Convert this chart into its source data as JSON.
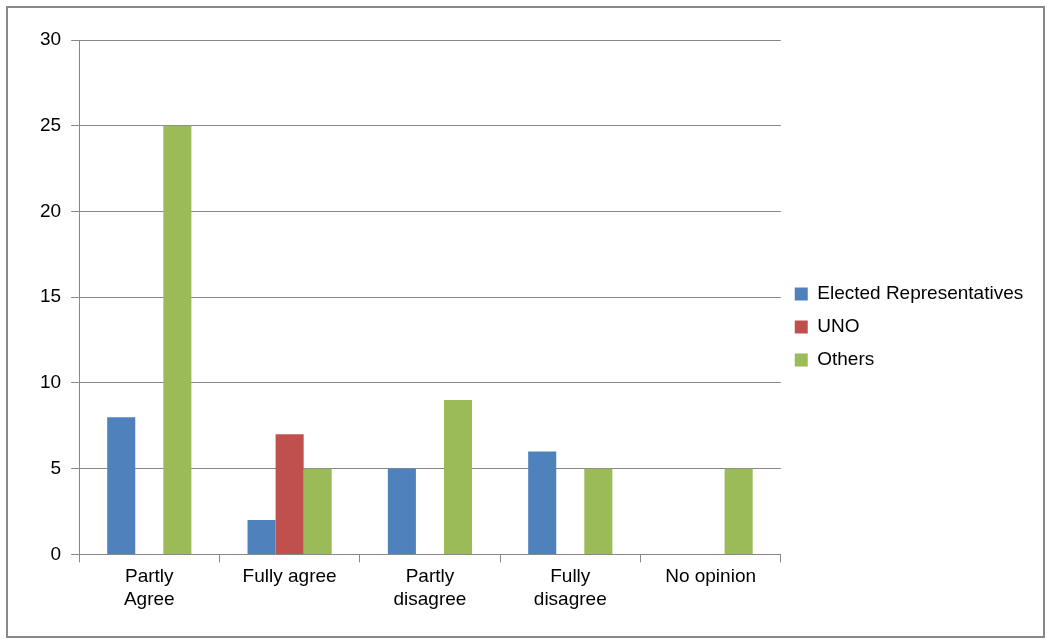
{
  "chart_data": {
    "type": "bar",
    "categories": [
      "Partly Agree",
      "Fully agree",
      "Partly disagree",
      "Fully disagree",
      "No opinion"
    ],
    "series": [
      {
        "name": "Elected Representatives",
        "color": "#4f81bd",
        "values": [
          8,
          2,
          5,
          6,
          null
        ]
      },
      {
        "name": "UNO",
        "color": "#c0504d",
        "values": [
          null,
          7,
          null,
          null,
          null
        ]
      },
      {
        "name": "Others",
        "color": "#9bbb59",
        "values": [
          25,
          5,
          9,
          5,
          5
        ]
      }
    ],
    "ylim": [
      0,
      30
    ],
    "yticks": [
      0,
      5,
      10,
      15,
      20,
      25,
      30
    ],
    "grid": "y",
    "legend": "right"
  }
}
